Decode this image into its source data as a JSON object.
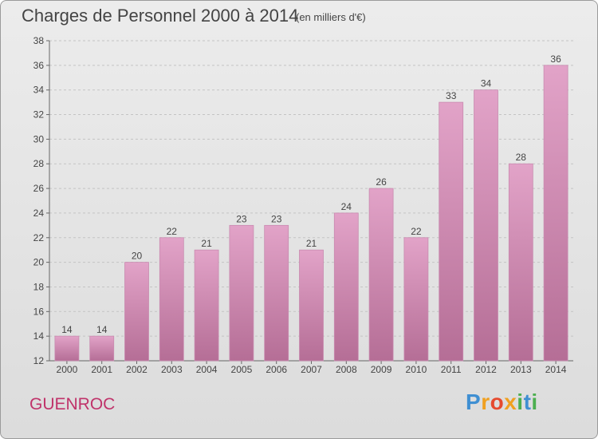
{
  "title": "Charges de Personnel 2000 à 2014",
  "subtitle": "(en milliers d'€)",
  "commune": "GUENROC",
  "logo": {
    "text": "Proxiti",
    "letters": [
      {
        "char": "P",
        "color": "#3f8fd2"
      },
      {
        "char": "r",
        "color": "#f0a020"
      },
      {
        "char": "o",
        "color": "#e64a2e"
      },
      {
        "char": "x",
        "color": "#f0a020"
      },
      {
        "char": "i",
        "color": "#4caf50"
      },
      {
        "char": "t",
        "color": "#3f8fd2"
      },
      {
        "char": "i",
        "color": "#4caf50"
      }
    ]
  },
  "chart_data": {
    "type": "bar",
    "title": "Charges de Personnel 2000 à 2014",
    "subtitle": "(en milliers d'€)",
    "categories": [
      "2000",
      "2001",
      "2002",
      "2003",
      "2004",
      "2005",
      "2006",
      "2007",
      "2008",
      "2009",
      "2010",
      "2011",
      "2012",
      "2013",
      "2014"
    ],
    "values": [
      14,
      14,
      20,
      22,
      21,
      23,
      23,
      21,
      24,
      26,
      22,
      33,
      34,
      28,
      36
    ],
    "ylim": [
      12,
      38
    ],
    "yticks": [
      12,
      14,
      16,
      18,
      20,
      22,
      24,
      26,
      28,
      30,
      32,
      34,
      36,
      38
    ],
    "grid": true,
    "bar_color": "#e2a3c8",
    "bar_color_dark": "#b56e96"
  }
}
